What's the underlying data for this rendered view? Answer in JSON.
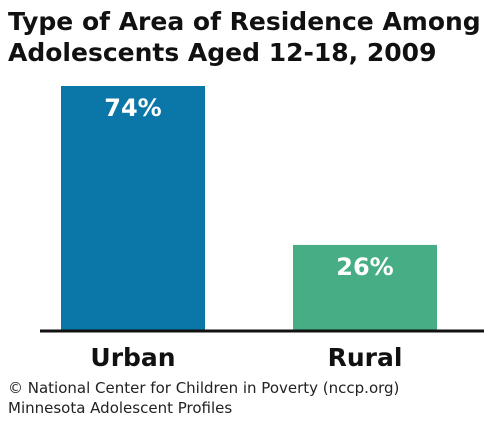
{
  "chart_data": {
    "type": "bar",
    "title": [
      "Type of Area of Residence Among",
      "Adolescents Aged 12-18, 2009"
    ],
    "categories": [
      "Urban",
      "Rural"
    ],
    "values": [
      74,
      26
    ],
    "value_labels": [
      "74%",
      "26%"
    ],
    "colors": [
      "#0a77a8",
      "#46ad84"
    ],
    "ylim": [
      0,
      74
    ],
    "grid": false,
    "legend": "none"
  },
  "footer": {
    "line1": "© National Center for Children in Poverty (nccp.org)",
    "line2": "Minnesota Adolescent Profiles"
  }
}
